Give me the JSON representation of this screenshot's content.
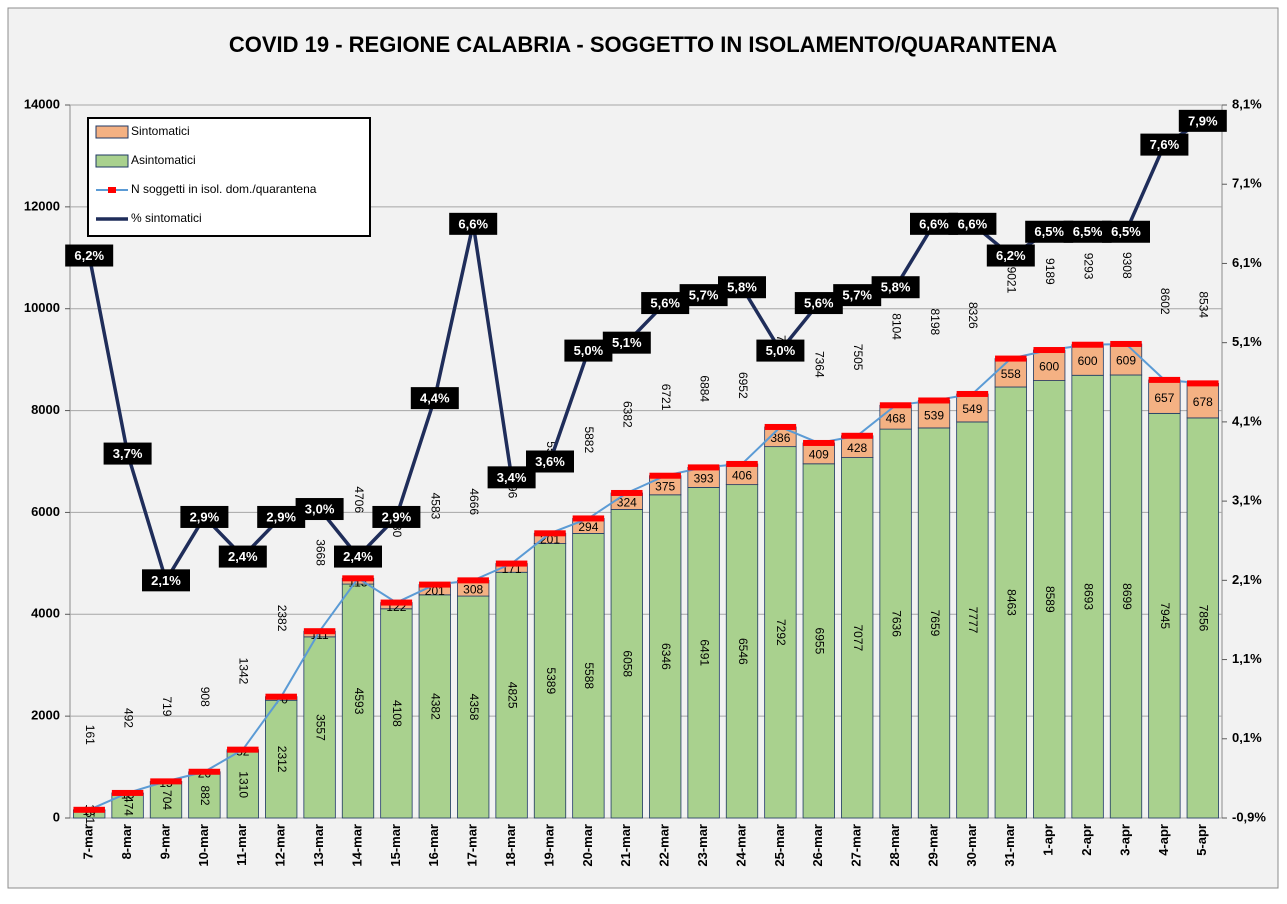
{
  "chart_data": {
    "type": "bar",
    "title": "COVID 19 - REGIONE CALABRIA  - SOGGETTO IN ISOLAMENTO/QUARANTENA",
    "categories": [
      "7-mar",
      "8-mar",
      "9-mar",
      "10-mar",
      "11-mar",
      "12-mar",
      "13-mar",
      "14-mar",
      "15-mar",
      "16-mar",
      "17-mar",
      "18-mar",
      "19-mar",
      "20-mar",
      "21-mar",
      "22-mar",
      "23-mar",
      "24-mar",
      "25-mar",
      "26-mar",
      "27-mar",
      "28-mar",
      "29-mar",
      "30-mar",
      "31-mar",
      "1-apr",
      "2-apr",
      "3-apr",
      "4-apr",
      "5-apr"
    ],
    "series": [
      {
        "name": "Asintomatici",
        "type": "bar",
        "stack": true,
        "color": "#a9d18e",
        "values": [
          151,
          474,
          704,
          882,
          1310,
          2312,
          3557,
          4593,
          4108,
          4382,
          4358,
          4825,
          5389,
          5588,
          6058,
          6346,
          6491,
          6546,
          7292,
          6955,
          7077,
          7636,
          7659,
          7777,
          8463,
          8589,
          8693,
          8699,
          7945,
          7856
        ]
      },
      {
        "name": "Sintomatici",
        "type": "bar",
        "stack": true,
        "color": "#f4b183",
        "values": [
          10,
          18,
          15,
          26,
          32,
          70,
          111,
          113,
          122,
          201,
          308,
          171,
          201,
          294,
          324,
          375,
          393,
          406,
          386,
          409,
          428,
          468,
          539,
          549,
          558,
          600,
          600,
          609,
          657,
          678
        ]
      },
      {
        "name": "N soggetti in isol. dom./quarantena",
        "type": "line",
        "color": "#5b9bd5",
        "marker_color": "#ff0000",
        "values": [
          161,
          492,
          719,
          908,
          1342,
          2382,
          3668,
          4706,
          4230,
          4583,
          4666,
          4996,
          5590,
          5882,
          6382,
          6721,
          6884,
          6952,
          7678,
          7364,
          7505,
          8104,
          8198,
          8326,
          9021,
          9189,
          9293,
          9308,
          8602,
          8534
        ]
      },
      {
        "name": "% sintomatici",
        "type": "line",
        "axis": "y2",
        "color": "#1f2d5a",
        "values": [
          6.2,
          3.7,
          2.1,
          2.9,
          2.4,
          2.9,
          3.0,
          2.4,
          2.9,
          4.4,
          6.6,
          3.4,
          3.6,
          5.0,
          5.1,
          5.6,
          5.7,
          5.8,
          5.0,
          5.6,
          5.7,
          5.8,
          6.6,
          6.6,
          6.2,
          6.5,
          6.5,
          6.5,
          7.6,
          7.9
        ],
        "value_labels": [
          "6,2%",
          "3,7%",
          "2,1%",
          "2,9%",
          "2,4%",
          "2,9%",
          "3,0%",
          "2,4%",
          "2,9%",
          "4,4%",
          "6,6%",
          "3,4%",
          "3,6%",
          "5,0%",
          "5,1%",
          "5,6%",
          "5,7%",
          "5,8%",
          "5,0%",
          "5,6%",
          "5,7%",
          "5,8%",
          "6,6%",
          "6,6%",
          "6,2%",
          "6,5%",
          "6,5%",
          "6,5%",
          "7,6%",
          "7,9%"
        ]
      }
    ],
    "ylim": [
      0,
      14000
    ],
    "yticks": [
      0,
      2000,
      4000,
      6000,
      8000,
      10000,
      12000,
      14000
    ],
    "y2lim": [
      -0.9,
      8.1
    ],
    "y2ticks": [
      {
        "value": -0.9,
        "label": "-0,9%"
      },
      {
        "value": 0.1,
        "label": "0,1%"
      },
      {
        "value": 1.1,
        "label": "1,1%"
      },
      {
        "value": 2.1,
        "label": "2,1%"
      },
      {
        "value": 3.1,
        "label": "3,1%"
      },
      {
        "value": 4.1,
        "label": "4,1%"
      },
      {
        "value": 5.1,
        "label": "5,1%"
      },
      {
        "value": 6.1,
        "label": "6,1%"
      },
      {
        "value": 7.1,
        "label": "7,1%"
      },
      {
        "value": 8.1,
        "label": "8,1%"
      }
    ],
    "grid": true,
    "legend": "upper left"
  }
}
